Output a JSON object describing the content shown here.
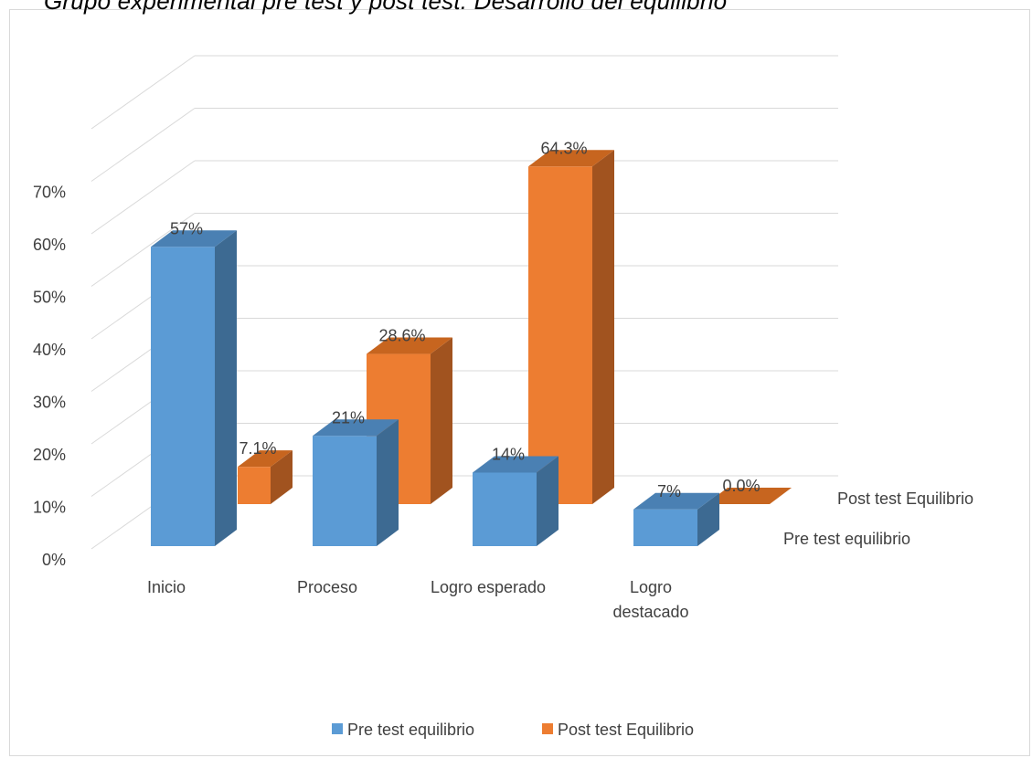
{
  "chart_data": {
    "type": "bar",
    "title": "Grupo experimental pre test y post test: Desarrollo del equilibrio",
    "xlabel": "",
    "ylabel": "",
    "categories": [
      "Inicio",
      "Proceso",
      "Logro esperado",
      "Logro destacado"
    ],
    "category_labels": [
      [
        "Inicio"
      ],
      [
        "Proceso"
      ],
      [
        "Logro esperado"
      ],
      [
        "Logro",
        "destacado"
      ]
    ],
    "series": [
      {
        "name": "Pre test equilibrio",
        "values": [
          57,
          21,
          14,
          7
        ],
        "labels": [
          "57%",
          "21%",
          "14%",
          "7%"
        ],
        "color": "#5B9BD5",
        "side_color": "#3D6A92",
        "top_color": "#4A80B3"
      },
      {
        "name": "Post test Equilibrio",
        "values": [
          7.1,
          28.6,
          64.3,
          0.0
        ],
        "labels": [
          "7.1%",
          "28.6%",
          "64.3%",
          "0.0%"
        ],
        "color": "#ED7D31",
        "side_color": "#A1531F",
        "top_color": "#C7651F"
      }
    ],
    "yticks": [
      0,
      10,
      20,
      30,
      40,
      50,
      60,
      70
    ],
    "ytick_labels": [
      "0%",
      "10%",
      "20%",
      "30%",
      "40%",
      "50%",
      "60%",
      "70%"
    ],
    "ylim": [
      0,
      70
    ],
    "grid": true,
    "projection": "3d",
    "legend": {
      "position": "bottom",
      "entries": [
        "Pre test equilibrio",
        "Post test Equilibrio"
      ]
    },
    "depth_axis_labels": [
      "Pre test equilibrio",
      "Post test Equilibrio"
    ]
  }
}
